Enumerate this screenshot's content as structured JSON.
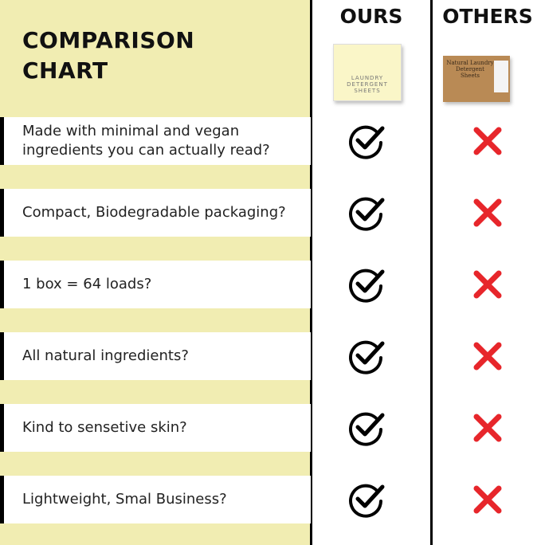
{
  "header": {
    "title": "COMPARISON CHART",
    "columns": [
      "OURS",
      "OTHERS"
    ]
  },
  "products": {
    "ours_label": "LAUNDRY DETERGENT SHEETS",
    "others_label": "Natural Laundry Detergent Sheets"
  },
  "rows": [
    "Made with minimal and vegan ingredients you can actually read?",
    "Compact, Biodegradable packaging?",
    "1 box = 64 loads?",
    "All natural ingredients?",
    "Kind to sensetive skin?",
    "Lightweight, Smal Business?"
  ]
}
